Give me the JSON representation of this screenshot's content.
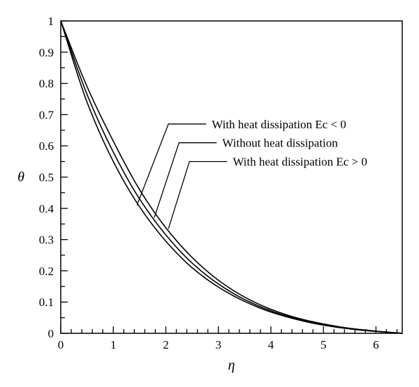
{
  "chart_data": {
    "type": "line",
    "xlabel": "η",
    "ylabel": "θ",
    "xlim": [
      0,
      6.5
    ],
    "ylim": [
      0,
      1
    ],
    "x_ticks": [
      0,
      1,
      2,
      3,
      4,
      5,
      6
    ],
    "y_ticks": [
      0,
      0.1,
      0.2,
      0.3,
      0.4,
      0.5,
      0.6,
      0.7,
      0.8,
      0.9,
      1
    ],
    "grid": false,
    "legend": "none",
    "series": [
      {
        "name": "With heat dissipation Ec < 0",
        "x": [
          0,
          0.5,
          1.0,
          1.5,
          2.0,
          2.5,
          3.0,
          3.5,
          4.0,
          4.5,
          5.0,
          5.5,
          6.0,
          6.5
        ],
        "y": [
          1.0,
          0.74,
          0.55,
          0.405,
          0.295,
          0.21,
          0.148,
          0.102,
          0.068,
          0.044,
          0.026,
          0.014,
          0.006,
          0.0
        ]
      },
      {
        "name": "Without heat dissipation",
        "x": [
          0,
          0.5,
          1.0,
          1.5,
          2.0,
          2.5,
          3.0,
          3.5,
          4.0,
          4.5,
          5.0,
          5.5,
          6.0,
          6.5
        ],
        "y": [
          1.0,
          0.765,
          0.58,
          0.43,
          0.315,
          0.225,
          0.158,
          0.108,
          0.072,
          0.046,
          0.028,
          0.015,
          0.007,
          0.0
        ]
      },
      {
        "name": "With heat dissipation Ec > 0",
        "x": [
          0,
          0.5,
          1.0,
          1.5,
          2.0,
          2.5,
          3.0,
          3.5,
          4.0,
          4.5,
          5.0,
          5.5,
          6.0,
          6.5
        ],
        "y": [
          1.0,
          0.79,
          0.615,
          0.46,
          0.338,
          0.243,
          0.17,
          0.116,
          0.077,
          0.049,
          0.03,
          0.016,
          0.007,
          0.0
        ]
      }
    ],
    "annotations": [
      {
        "text": "With heat dissipation Ec < 0",
        "series": 0,
        "point": [
          1.45,
          0.41
        ],
        "elbow": [
          2.05,
          0.67
        ],
        "label_y": 0.67
      },
      {
        "text": "Without heat dissipation",
        "series": 1,
        "point": [
          1.78,
          0.37
        ],
        "elbow": [
          2.25,
          0.61
        ],
        "label_y": 0.61
      },
      {
        "text": "With heat dissipation Ec > 0",
        "series": 2,
        "point": [
          2.05,
          0.335
        ],
        "elbow": [
          2.45,
          0.55
        ],
        "label_y": 0.55
      }
    ]
  }
}
